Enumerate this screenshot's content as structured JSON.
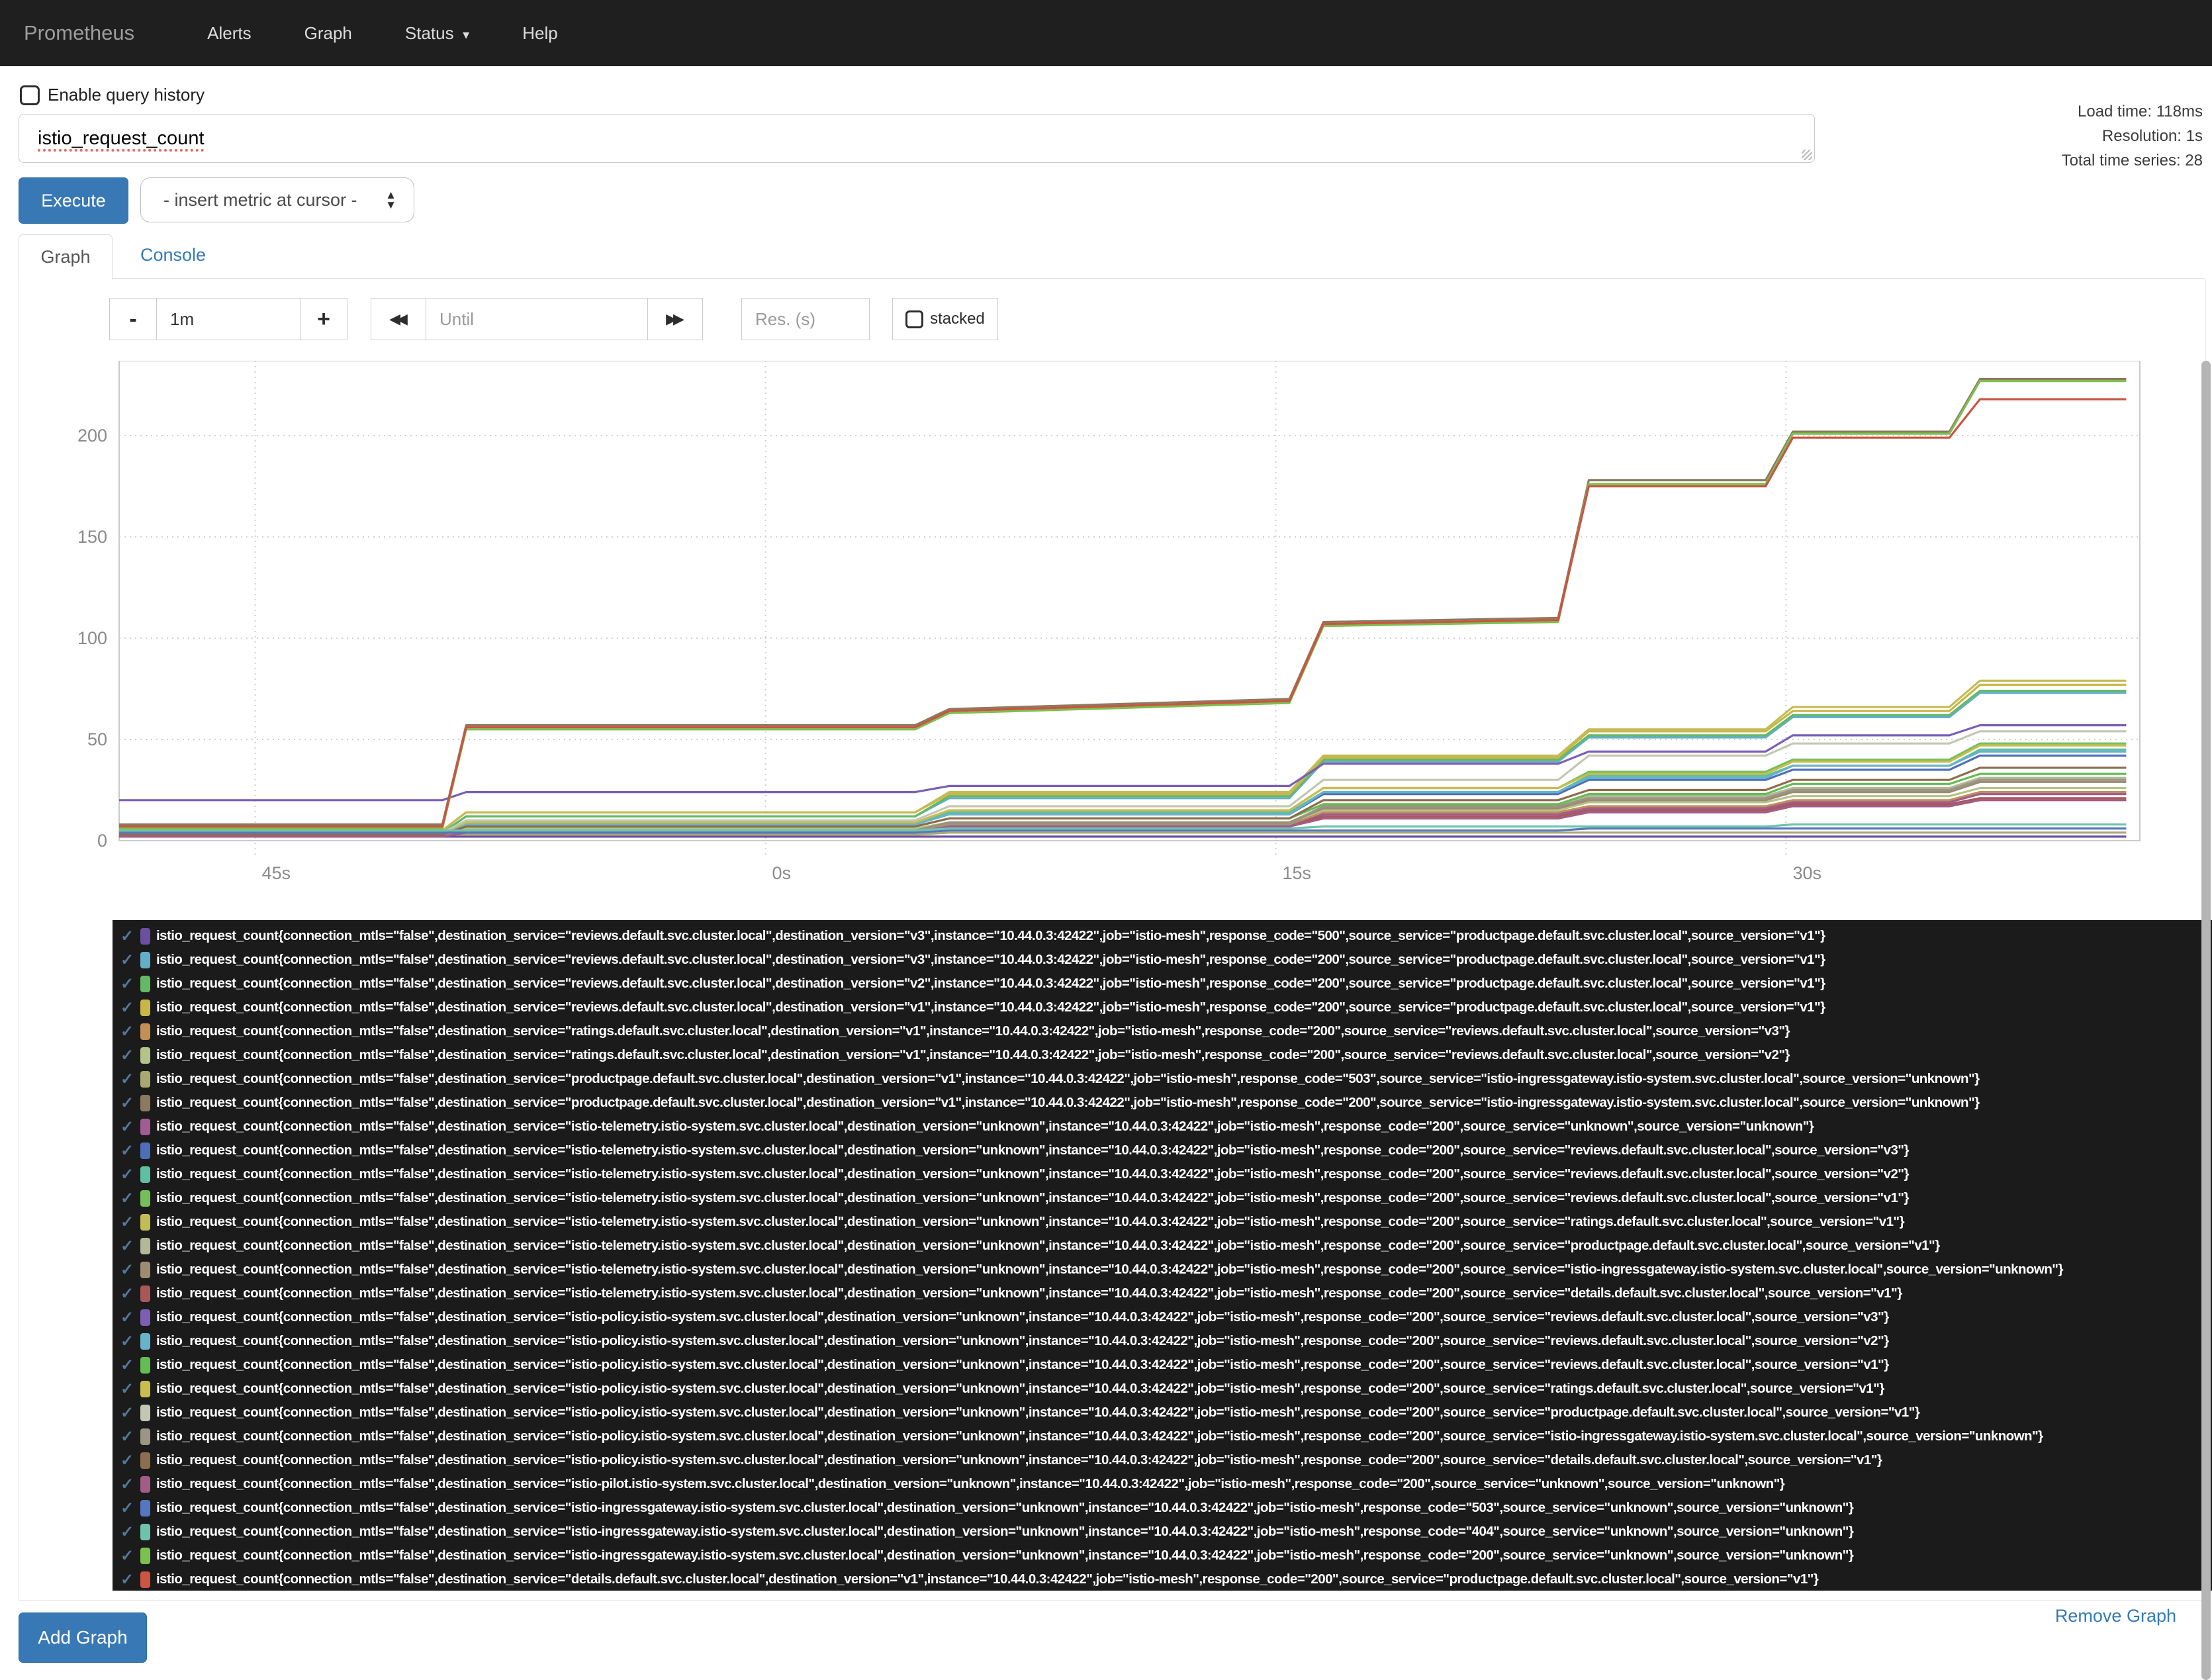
{
  "navbar": {
    "brand": "Prometheus",
    "items": [
      "Alerts",
      "Graph",
      "Status",
      "Help"
    ]
  },
  "query": {
    "history_label": "Enable query history",
    "value": "istio_request_count",
    "stats": [
      "Load time: 118ms",
      "Resolution: 1s",
      "Total time series: 28"
    ],
    "execute_label": "Execute",
    "metric_dropdown_value": "- insert metric at cursor -"
  },
  "tabs": {
    "graph": "Graph",
    "console": "Console"
  },
  "controls": {
    "minus": "-",
    "range_value": "1m",
    "plus": "+",
    "back_icon": "◀◀",
    "forward_icon": "▶▶",
    "until_placeholder": "Until",
    "res_placeholder": "Res. (s)",
    "stacked_label": "stacked"
  },
  "footer": {
    "remove_graph": "Remove Graph",
    "add_graph": "Add Graph"
  },
  "chart_data": {
    "type": "line",
    "title": "",
    "xlabel": "",
    "ylabel": "",
    "grid": true,
    "legend_position": "bottom",
    "ylim": [
      0,
      237
    ],
    "yticks": [
      0,
      50,
      100,
      150,
      200
    ],
    "xticks": [
      {
        "t": -15,
        "label": "45s"
      },
      {
        "t": 0,
        "label": "0s"
      },
      {
        "t": 15,
        "label": "15s"
      },
      {
        "t": 30,
        "label": "30s"
      }
    ],
    "x_range_seconds": [
      -19,
      40.4
    ],
    "x": [
      -19,
      -9.5,
      -8.8,
      4.4,
      5.4,
      15.4,
      16.4,
      23.3,
      24.2,
      29.4,
      30.2,
      34.8,
      35.7,
      40
    ],
    "series": [
      {
        "color": "#6b4fa0",
        "values": [
          2,
          2,
          2,
          2,
          2,
          2,
          2,
          2,
          2,
          2,
          2,
          2,
          2,
          2
        ],
        "label": "istio_request_count{connection_mtls=\"false\",destination_service=\"reviews.default.svc.cluster.local\",destination_version=\"v3\",instance=\"10.44.0.3:42422\",job=\"istio-mesh\",response_code=\"500\",source_service=\"productpage.default.svc.cluster.local\",source_version=\"v1\"}"
      },
      {
        "color": "#64aec9",
        "values": [
          4,
          4,
          12,
          12,
          21,
          21,
          39,
          39,
          51,
          51,
          61,
          61,
          73,
          73
        ],
        "label": "istio_request_count{connection_mtls=\"false\",destination_service=\"reviews.default.svc.cluster.local\",destination_version=\"v3\",instance=\"10.44.0.3:42422\",job=\"istio-mesh\",response_code=\"200\",source_service=\"productpage.default.svc.cluster.local\",source_version=\"v1\"}"
      },
      {
        "color": "#64b964",
        "values": [
          4,
          4,
          12,
          12,
          22,
          22,
          40,
          40,
          52,
          52,
          62,
          62,
          74,
          74
        ],
        "label": "istio_request_count{connection_mtls=\"false\",destination_service=\"reviews.default.svc.cluster.local\",destination_version=\"v2\",instance=\"10.44.0.3:42422\",job=\"istio-mesh\",response_code=\"200\",source_service=\"productpage.default.svc.cluster.local\",source_version=\"v1\"}"
      },
      {
        "color": "#c9b647",
        "values": [
          5,
          5,
          14,
          14,
          23,
          23,
          41,
          41,
          54,
          54,
          64,
          64,
          77,
          77
        ],
        "label": "istio_request_count{connection_mtls=\"false\",destination_service=\"reviews.default.svc.cluster.local\",destination_version=\"v1\",instance=\"10.44.0.3:42422\",job=\"istio-mesh\",response_code=\"200\",source_service=\"productpage.default.svc.cluster.local\",source_version=\"v1\"}"
      },
      {
        "color": "#c28f55",
        "values": [
          3,
          3,
          6,
          6,
          8,
          8,
          14,
          14,
          17,
          17,
          20,
          20,
          24,
          24
        ],
        "label": "istio_request_count{connection_mtls=\"false\",destination_service=\"ratings.default.svc.cluster.local\",destination_version=\"v1\",instance=\"10.44.0.3:42422\",job=\"istio-mesh\",response_code=\"200\",source_service=\"reviews.default.svc.cluster.local\",source_version=\"v3\"}"
      },
      {
        "color": "#b4c389",
        "values": [
          3,
          3,
          6,
          6,
          9,
          9,
          15,
          15,
          19,
          19,
          22,
          22,
          26,
          26
        ],
        "label": "istio_request_count{connection_mtls=\"false\",destination_service=\"ratings.default.svc.cluster.local\",destination_version=\"v1\",instance=\"10.44.0.3:42422\",job=\"istio-mesh\",response_code=\"200\",source_service=\"reviews.default.svc.cluster.local\",source_version=\"v2\"}"
      },
      {
        "color": "#a8a871",
        "values": [
          3,
          3,
          3,
          3,
          4,
          4,
          4,
          4,
          4,
          4,
          4,
          4,
          4,
          4
        ],
        "label": "istio_request_count{connection_mtls=\"false\",destination_service=\"productpage.default.svc.cluster.local\",destination_version=\"v1\",instance=\"10.44.0.3:42422\",job=\"istio-mesh\",response_code=\"503\",source_service=\"istio-ingressgateway.istio-system.svc.cluster.local\",source_version=\"unknown\"}"
      },
      {
        "color": "#8c7a60",
        "values": [
          8,
          8,
          57,
          57,
          65,
          70,
          108,
          110,
          178,
          178,
          202,
          202,
          228,
          228
        ],
        "label": "istio_request_count{connection_mtls=\"false\",destination_service=\"productpage.default.svc.cluster.local\",destination_version=\"v1\",instance=\"10.44.0.3:42422\",job=\"istio-mesh\",response_code=\"200\",source_service=\"istio-ingressgateway.istio-system.svc.cluster.local\",source_version=\"unknown\"}"
      },
      {
        "color": "#a05c94",
        "values": [
          2,
          2,
          5,
          5,
          7,
          7,
          13,
          13,
          16,
          16,
          19,
          19,
          23,
          23
        ],
        "label": "istio_request_count{connection_mtls=\"false\",destination_service=\"istio-telemetry.istio-system.svc.cluster.local\",destination_version=\"unknown\",instance=\"10.44.0.3:42422\",job=\"istio-mesh\",response_code=\"200\",source_service=\"unknown\",source_version=\"unknown\"}"
      },
      {
        "color": "#4d6fba",
        "values": [
          3,
          3,
          8,
          8,
          13,
          13,
          23,
          23,
          30,
          30,
          35,
          35,
          42,
          42
        ],
        "label": "istio_request_count{connection_mtls=\"false\",destination_service=\"istio-telemetry.istio-system.svc.cluster.local\",destination_version=\"unknown\",instance=\"10.44.0.3:42422\",job=\"istio-mesh\",response_code=\"200\",source_service=\"reviews.default.svc.cluster.local\",source_version=\"v3\"}"
      },
      {
        "color": "#5dbfa4",
        "values": [
          3,
          3,
          8,
          8,
          14,
          14,
          24,
          24,
          32,
          32,
          37,
          37,
          45,
          45
        ],
        "label": "istio_request_count{connection_mtls=\"false\",destination_service=\"istio-telemetry.istio-system.svc.cluster.local\",destination_version=\"unknown\",instance=\"10.44.0.3:42422\",job=\"istio-mesh\",response_code=\"200\",source_service=\"reviews.default.svc.cluster.local\",source_version=\"v2\"}"
      },
      {
        "color": "#74bf5c",
        "values": [
          4,
          4,
          9,
          9,
          15,
          15,
          26,
          26,
          34,
          34,
          40,
          40,
          48,
          48
        ],
        "label": "istio_request_count{connection_mtls=\"false\",destination_service=\"istio-telemetry.istio-system.svc.cluster.local\",destination_version=\"unknown\",instance=\"10.44.0.3:42422\",job=\"istio-mesh\",response_code=\"200\",source_service=\"reviews.default.svc.cluster.local\",source_version=\"v1\"}"
      },
      {
        "color": "#c2bc55",
        "values": [
          5,
          5,
          14,
          14,
          24,
          24,
          42,
          42,
          55,
          55,
          66,
          66,
          79,
          79
        ],
        "label": "istio_request_count{connection_mtls=\"false\",destination_service=\"istio-telemetry.istio-system.svc.cluster.local\",destination_version=\"unknown\",instance=\"10.44.0.3:42422\",job=\"istio-mesh\",response_code=\"200\",source_service=\"ratings.default.svc.cluster.local\",source_version=\"v1\"}"
      },
      {
        "color": "#b2b898",
        "values": [
          2,
          2,
          5,
          5,
          9,
          9,
          17,
          17,
          22,
          22,
          26,
          26,
          31,
          31
        ],
        "label": "istio_request_count{connection_mtls=\"false\",destination_service=\"istio-telemetry.istio-system.svc.cluster.local\",destination_version=\"unknown\",instance=\"10.44.0.3:42422\",job=\"istio-mesh\",response_code=\"200\",source_service=\"productpage.default.svc.cluster.local\",source_version=\"v1\"}"
      },
      {
        "color": "#9d8c71",
        "values": [
          2,
          2,
          5,
          5,
          9,
          9,
          16,
          16,
          20,
          20,
          24,
          24,
          29,
          29
        ],
        "label": "istio_request_count{connection_mtls=\"false\",destination_service=\"istio-telemetry.istio-system.svc.cluster.local\",destination_version=\"unknown\",instance=\"10.44.0.3:42422\",job=\"istio-mesh\",response_code=\"200\",source_service=\"istio-ingressgateway.istio-system.svc.cluster.local\",source_version=\"unknown\"}"
      },
      {
        "color": "#a85858",
        "values": [
          2,
          2,
          4,
          4,
          7,
          7,
          12,
          12,
          15,
          15,
          18,
          18,
          21,
          21
        ],
        "label": "istio_request_count{connection_mtls=\"false\",destination_service=\"istio-telemetry.istio-system.svc.cluster.local\",destination_version=\"unknown\",instance=\"10.44.0.3:42422\",job=\"istio-mesh\",response_code=\"200\",source_service=\"details.default.svc.cluster.local\",source_version=\"v1\"}"
      },
      {
        "color": "#7a5fb5",
        "values": [
          20,
          20,
          24,
          24,
          27,
          27,
          38,
          38,
          44,
          44,
          52,
          52,
          57,
          57
        ],
        "label": "istio_request_count{connection_mtls=\"false\",destination_service=\"istio-policy.istio-system.svc.cluster.local\",destination_version=\"unknown\",instance=\"10.44.0.3:42422\",job=\"istio-mesh\",response_code=\"200\",source_service=\"reviews.default.svc.cluster.local\",source_version=\"v3\"}"
      },
      {
        "color": "#68b3c9",
        "values": [
          3,
          3,
          8,
          8,
          13,
          13,
          24,
          24,
          31,
          31,
          37,
          37,
          44,
          44
        ],
        "label": "istio_request_count{connection_mtls=\"false\",destination_service=\"istio-policy.istio-system.svc.cluster.local\",destination_version=\"unknown\",instance=\"10.44.0.3:42422\",job=\"istio-mesh\",response_code=\"200\",source_service=\"reviews.default.svc.cluster.local\",source_version=\"v2\"}"
      },
      {
        "color": "#63bd52",
        "values": [
          3,
          3,
          7,
          7,
          11,
          11,
          18,
          18,
          23,
          23,
          28,
          28,
          33,
          33
        ],
        "label": "istio_request_count{connection_mtls=\"false\",destination_service=\"istio-policy.istio-system.svc.cluster.local\",destination_version=\"unknown\",instance=\"10.44.0.3:42422\",job=\"istio-mesh\",response_code=\"200\",source_service=\"reviews.default.svc.cluster.local\",source_version=\"v1\"}"
      },
      {
        "color": "#c9bd4d",
        "values": [
          4,
          4,
          9,
          9,
          15,
          15,
          26,
          26,
          33,
          33,
          39,
          39,
          47,
          47
        ],
        "label": "istio_request_count{connection_mtls=\"false\",destination_service=\"istio-policy.istio-system.svc.cluster.local\",destination_version=\"unknown\",instance=\"10.44.0.3:42422\",job=\"istio-mesh\",response_code=\"200\",source_service=\"ratings.default.svc.cluster.local\",source_version=\"v1\"}"
      },
      {
        "color": "#c3c6b2",
        "values": [
          4,
          4,
          10,
          10,
          17,
          17,
          30,
          30,
          42,
          42,
          48,
          48,
          54,
          54
        ],
        "label": "istio_request_count{connection_mtls=\"false\",destination_service=\"istio-policy.istio-system.svc.cluster.local\",destination_version=\"unknown\",instance=\"10.44.0.3:42422\",job=\"istio-mesh\",response_code=\"200\",source_service=\"productpage.default.svc.cluster.local\",source_version=\"v1\"}"
      },
      {
        "color": "#9a9584",
        "values": [
          2,
          2,
          5,
          5,
          8,
          8,
          17,
          17,
          21,
          21,
          25,
          25,
          30,
          30
        ],
        "label": "istio_request_count{connection_mtls=\"false\",destination_service=\"istio-policy.istio-system.svc.cluster.local\",destination_version=\"unknown\",instance=\"10.44.0.3:42422\",job=\"istio-mesh\",response_code=\"200\",source_service=\"istio-ingressgateway.istio-system.svc.cluster.local\",source_version=\"unknown\"}"
      },
      {
        "color": "#8c6d4d",
        "values": [
          3,
          3,
          7,
          7,
          11,
          11,
          20,
          20,
          25,
          25,
          30,
          30,
          36,
          36
        ],
        "label": "istio_request_count{connection_mtls=\"false\",destination_service=\"istio-policy.istio-system.svc.cluster.local\",destination_version=\"unknown\",instance=\"10.44.0.3:42422\",job=\"istio-mesh\",response_code=\"200\",source_service=\"details.default.svc.cluster.local\",source_version=\"v1\"}"
      },
      {
        "color": "#a25c85",
        "values": [
          2,
          2,
          4,
          4,
          7,
          7,
          11,
          11,
          14,
          14,
          17,
          17,
          20,
          20
        ],
        "label": "istio_request_count{connection_mtls=\"false\",destination_service=\"istio-pilot.istio-system.svc.cluster.local\",destination_version=\"unknown\",instance=\"10.44.0.3:42422\",job=\"istio-mesh\",response_code=\"200\",source_service=\"unknown\",source_version=\"unknown\"}"
      },
      {
        "color": "#5577c0",
        "values": [
          4,
          4,
          4,
          4,
          5,
          5,
          5,
          5,
          6,
          6,
          6,
          6,
          6,
          6
        ],
        "label": "istio_request_count{connection_mtls=\"false\",destination_service=\"istio-ingressgateway.istio-system.svc.cluster.local\",destination_version=\"unknown\",instance=\"10.44.0.3:42422\",job=\"istio-mesh\",response_code=\"503\",source_service=\"unknown\",source_version=\"unknown\"}"
      },
      {
        "color": "#6fc3ad",
        "values": [
          5,
          5,
          5,
          5,
          6,
          6,
          7,
          7,
          7,
          7,
          8,
          8,
          8,
          8
        ],
        "label": "istio_request_count{connection_mtls=\"false\",destination_service=\"istio-ingressgateway.istio-system.svc.cluster.local\",destination_version=\"unknown\",instance=\"10.44.0.3:42422\",job=\"istio-mesh\",response_code=\"404\",source_service=\"unknown\",source_version=\"unknown\"}"
      },
      {
        "color": "#7ac24e",
        "values": [
          6,
          6,
          55,
          55,
          63,
          68,
          106,
          108,
          176,
          176,
          201,
          201,
          227,
          227
        ],
        "label": "istio_request_count{connection_mtls=\"false\",destination_service=\"istio-ingressgateway.istio-system.svc.cluster.local\",destination_version=\"unknown\",instance=\"10.44.0.3:42422\",job=\"istio-mesh\",response_code=\"200\",source_service=\"unknown\",source_version=\"unknown\"}"
      },
      {
        "color": "#cb5442",
        "values": [
          7,
          7,
          56,
          56,
          64,
          69,
          107,
          109,
          175,
          175,
          199,
          199,
          218,
          218
        ],
        "label": "istio_request_count{connection_mtls=\"false\",destination_service=\"details.default.svc.cluster.local\",destination_version=\"v1\",instance=\"10.44.0.3:42422\",job=\"istio-mesh\",response_code=\"200\",source_service=\"productpage.default.svc.cluster.local\",source_version=\"v1\"}"
      }
    ]
  }
}
